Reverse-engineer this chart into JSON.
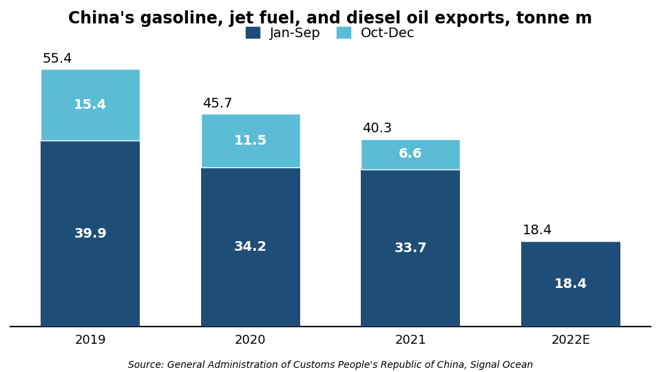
{
  "title": "China's gasoline, jet fuel, and diesel oil exports, tonne m",
  "categories": [
    "2019",
    "2020",
    "2021",
    "2022E"
  ],
  "jan_sep": [
    39.9,
    34.2,
    33.7,
    18.4
  ],
  "oct_dec": [
    15.4,
    11.5,
    6.6,
    0.0
  ],
  "totals": [
    55.4,
    45.7,
    40.3,
    18.4
  ],
  "color_jan_sep": "#1e4d78",
  "color_oct_dec": "#5bbcd6",
  "legend_labels": [
    "Jan-Sep",
    "Oct-Dec"
  ],
  "source_text": "Source: General Administration of Customs People's Republic of China, Signal Ocean",
  "ylim": [
    0,
    62
  ],
  "bar_width": 0.62,
  "background_color": "#ffffff",
  "title_fontsize": 17,
  "label_fontsize": 14,
  "tick_fontsize": 13,
  "source_fontsize": 10,
  "total_label_fontsize": 14
}
